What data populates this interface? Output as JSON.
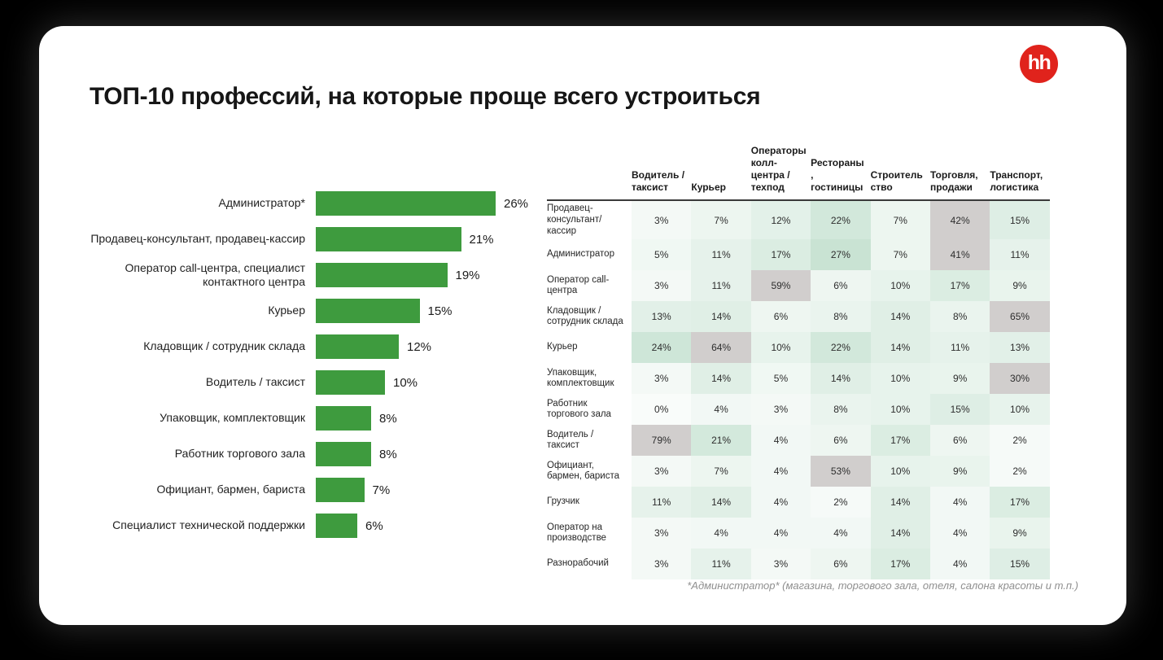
{
  "title": "ТОП-10 профессий, на которые проще всего устроиться",
  "logo": {
    "text": "hh",
    "bg_color": "#e0231c",
    "text_color": "#ffffff"
  },
  "footnote": "*Администратор* (магазина, торгового зала, отеля, салона красоты и т.п.)",
  "colors": {
    "page_bg": "#000000",
    "card_bg": "#ffffff",
    "bar_green": "#3e9b3e",
    "heat_green_base_rgb": "60,155,98",
    "heat_gray": "#d1cecd",
    "header_rule": "#3a3a3a"
  },
  "chart_data": [
    {
      "type": "bar",
      "orientation": "horizontal",
      "title": "ТОП-10 профессий, на которые проще всего устроиться",
      "categories": [
        "Администратор*",
        "Продавец-консультант, продавец-кассир",
        "Оператор call-центра, специалист контактного центра",
        "Курьер",
        "Кладовщик / сотрудник склада",
        "Водитель / таксист",
        "Упаковщик, комплектовщик",
        "Работник торгового зала",
        "Официант, бармен, бариста",
        "Специалист технической поддержки"
      ],
      "values": [
        26,
        21,
        19,
        15,
        12,
        10,
        8,
        8,
        7,
        6
      ],
      "value_suffix": "%",
      "xlim": [
        0,
        30
      ],
      "bar_color": "#3e9b3e",
      "grid": false,
      "legend": false
    },
    {
      "type": "heatmap",
      "columns": [
        "Водитель / таксист",
        "Курьер",
        "Операторы колл-центра / техпод",
        "Рестораны, гостиницы",
        "Строительство",
        "Торговля, продажи",
        "Транспорт, логистика"
      ],
      "rows": [
        {
          "label": "Продавец-консультант/кассир",
          "values": [
            3,
            7,
            12,
            22,
            7,
            42,
            15
          ]
        },
        {
          "label": "Администратор",
          "values": [
            5,
            11,
            17,
            27,
            7,
            41,
            11
          ]
        },
        {
          "label": "Оператор call-центра",
          "values": [
            3,
            11,
            59,
            6,
            10,
            17,
            9
          ]
        },
        {
          "label": "Кладовщик / сотрудник склада",
          "values": [
            13,
            14,
            6,
            8,
            14,
            8,
            65
          ]
        },
        {
          "label": "Курьер",
          "values": [
            24,
            64,
            10,
            22,
            14,
            11,
            13
          ]
        },
        {
          "label": "Упаковщик, комплектовщик",
          "values": [
            3,
            14,
            5,
            14,
            10,
            9,
            30
          ]
        },
        {
          "label": "Работник торгового зала",
          "values": [
            0,
            4,
            3,
            8,
            10,
            15,
            10
          ]
        },
        {
          "label": "Водитель / таксист",
          "values": [
            79,
            21,
            4,
            6,
            17,
            6,
            2
          ]
        },
        {
          "label": "Официант, бармен, бариста",
          "values": [
            3,
            7,
            4,
            53,
            10,
            9,
            2
          ]
        },
        {
          "label": "Грузчик",
          "values": [
            11,
            14,
            4,
            2,
            14,
            4,
            17
          ]
        },
        {
          "label": "Оператор на производстве",
          "values": [
            3,
            4,
            4,
            4,
            14,
            4,
            9
          ]
        },
        {
          "label": "Разнорабочий",
          "values": [
            3,
            11,
            3,
            6,
            17,
            4,
            15
          ]
        }
      ],
      "value_suffix": "%",
      "cell_shading": "green intensity scales with value; values >= 30% shown on gray",
      "gray_threshold": 30
    }
  ]
}
